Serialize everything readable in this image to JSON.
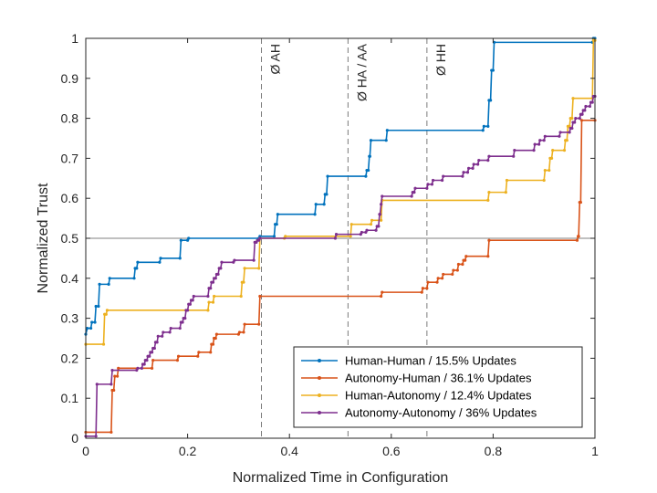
{
  "chart_data": {
    "type": "line",
    "title": "",
    "xlabel": "Normalized Time in Configuration",
    "ylabel": "Normalized Trust",
    "xlim": [
      0,
      1
    ],
    "ylim": [
      0,
      1
    ],
    "x_ticks": [
      "0",
      "0.2",
      "0.4",
      "0.6",
      "0.8",
      "1"
    ],
    "y_ticks": [
      "0",
      "0.1",
      "0.2",
      "0.3",
      "0.4",
      "0.5",
      "0.6",
      "0.7",
      "0.8",
      "0.9",
      "1"
    ],
    "x_tick_values": [
      0,
      0.2,
      0.4,
      0.6,
      0.8,
      1
    ],
    "y_tick_values": [
      0,
      0.1,
      0.2,
      0.3,
      0.4,
      0.5,
      0.6,
      0.7,
      0.8,
      0.9,
      1
    ],
    "grid": false,
    "legend_position": "bottom-right",
    "reference_line": {
      "y": 0.5,
      "color": "#808080"
    },
    "vlines": [
      {
        "x": 0.345,
        "label": "Ø AH"
      },
      {
        "x": 0.515,
        "label": "Ø HA / AA"
      },
      {
        "x": 0.67,
        "label": "Ø HH"
      }
    ],
    "series": [
      {
        "name": "Human-Human / 15.5% Updates",
        "color": "#0072BD",
        "points": [
          [
            0,
            0.26
          ],
          [
            0.003,
            0.275
          ],
          [
            0.01,
            0.275
          ],
          [
            0.012,
            0.29
          ],
          [
            0.018,
            0.29
          ],
          [
            0.02,
            0.33
          ],
          [
            0.025,
            0.33
          ],
          [
            0.027,
            0.385
          ],
          [
            0.045,
            0.385
          ],
          [
            0.047,
            0.4
          ],
          [
            0.095,
            0.4
          ],
          [
            0.097,
            0.425
          ],
          [
            0.1,
            0.425
          ],
          [
            0.102,
            0.44
          ],
          [
            0.145,
            0.44
          ],
          [
            0.147,
            0.45
          ],
          [
            0.185,
            0.45
          ],
          [
            0.187,
            0.495
          ],
          [
            0.2,
            0.495
          ],
          [
            0.202,
            0.5
          ],
          [
            0.34,
            0.5
          ],
          [
            0.342,
            0.505
          ],
          [
            0.37,
            0.505
          ],
          [
            0.372,
            0.535
          ],
          [
            0.375,
            0.535
          ],
          [
            0.377,
            0.56
          ],
          [
            0.45,
            0.56
          ],
          [
            0.452,
            0.585
          ],
          [
            0.468,
            0.585
          ],
          [
            0.47,
            0.61
          ],
          [
            0.473,
            0.61
          ],
          [
            0.475,
            0.655
          ],
          [
            0.55,
            0.655
          ],
          [
            0.552,
            0.67
          ],
          [
            0.555,
            0.67
          ],
          [
            0.557,
            0.705
          ],
          [
            0.558,
            0.705
          ],
          [
            0.56,
            0.745
          ],
          [
            0.59,
            0.745
          ],
          [
            0.592,
            0.77
          ],
          [
            0.78,
            0.77
          ],
          [
            0.782,
            0.78
          ],
          [
            0.79,
            0.78
          ],
          [
            0.792,
            0.845
          ],
          [
            0.795,
            0.845
          ],
          [
            0.797,
            0.92
          ],
          [
            0.8,
            0.92
          ],
          [
            0.802,
            0.99
          ],
          [
            0.995,
            0.99
          ],
          [
            0.997,
            1.0
          ],
          [
            1.0,
            1.0
          ]
        ]
      },
      {
        "name": "Autonomy-Human / 36.1% Updates",
        "color": "#D95319",
        "points": [
          [
            0,
            0.015
          ],
          [
            0.05,
            0.015
          ],
          [
            0.052,
            0.12
          ],
          [
            0.055,
            0.12
          ],
          [
            0.057,
            0.155
          ],
          [
            0.062,
            0.155
          ],
          [
            0.064,
            0.175
          ],
          [
            0.13,
            0.175
          ],
          [
            0.132,
            0.195
          ],
          [
            0.18,
            0.195
          ],
          [
            0.182,
            0.205
          ],
          [
            0.22,
            0.205
          ],
          [
            0.222,
            0.215
          ],
          [
            0.245,
            0.215
          ],
          [
            0.247,
            0.235
          ],
          [
            0.25,
            0.235
          ],
          [
            0.252,
            0.25
          ],
          [
            0.255,
            0.25
          ],
          [
            0.257,
            0.26
          ],
          [
            0.3,
            0.26
          ],
          [
            0.302,
            0.265
          ],
          [
            0.31,
            0.265
          ],
          [
            0.312,
            0.285
          ],
          [
            0.34,
            0.285
          ],
          [
            0.342,
            0.355
          ],
          [
            0.58,
            0.355
          ],
          [
            0.582,
            0.365
          ],
          [
            0.66,
            0.365
          ],
          [
            0.662,
            0.375
          ],
          [
            0.67,
            0.375
          ],
          [
            0.672,
            0.39
          ],
          [
            0.69,
            0.39
          ],
          [
            0.692,
            0.4
          ],
          [
            0.7,
            0.4
          ],
          [
            0.702,
            0.41
          ],
          [
            0.72,
            0.41
          ],
          [
            0.722,
            0.42
          ],
          [
            0.73,
            0.42
          ],
          [
            0.732,
            0.435
          ],
          [
            0.74,
            0.435
          ],
          [
            0.742,
            0.445
          ],
          [
            0.745,
            0.445
          ],
          [
            0.747,
            0.455
          ],
          [
            0.79,
            0.455
          ],
          [
            0.792,
            0.495
          ],
          [
            0.965,
            0.495
          ],
          [
            0.967,
            0.505
          ],
          [
            0.968,
            0.505
          ],
          [
            0.97,
            0.59
          ],
          [
            0.972,
            0.59
          ],
          [
            0.974,
            0.795
          ],
          [
            1.0,
            0.795
          ]
        ]
      },
      {
        "name": "Human-Autonomy / 12.4% Updates",
        "color": "#EDB120",
        "points": [
          [
            0,
            0.235
          ],
          [
            0.035,
            0.235
          ],
          [
            0.037,
            0.31
          ],
          [
            0.04,
            0.31
          ],
          [
            0.042,
            0.32
          ],
          [
            0.24,
            0.32
          ],
          [
            0.242,
            0.34
          ],
          [
            0.25,
            0.34
          ],
          [
            0.252,
            0.355
          ],
          [
            0.305,
            0.355
          ],
          [
            0.307,
            0.39
          ],
          [
            0.31,
            0.39
          ],
          [
            0.312,
            0.425
          ],
          [
            0.34,
            0.425
          ],
          [
            0.342,
            0.5
          ],
          [
            0.39,
            0.5
          ],
          [
            0.392,
            0.505
          ],
          [
            0.52,
            0.505
          ],
          [
            0.522,
            0.535
          ],
          [
            0.56,
            0.535
          ],
          [
            0.562,
            0.545
          ],
          [
            0.58,
            0.545
          ],
          [
            0.582,
            0.595
          ],
          [
            0.79,
            0.595
          ],
          [
            0.792,
            0.615
          ],
          [
            0.825,
            0.615
          ],
          [
            0.827,
            0.645
          ],
          [
            0.9,
            0.645
          ],
          [
            0.902,
            0.67
          ],
          [
            0.91,
            0.67
          ],
          [
            0.912,
            0.7
          ],
          [
            0.915,
            0.7
          ],
          [
            0.917,
            0.72
          ],
          [
            0.94,
            0.72
          ],
          [
            0.942,
            0.745
          ],
          [
            0.945,
            0.745
          ],
          [
            0.947,
            0.78
          ],
          [
            0.95,
            0.78
          ],
          [
            0.952,
            0.8
          ],
          [
            0.955,
            0.8
          ],
          [
            0.957,
            0.85
          ],
          [
            0.995,
            0.85
          ],
          [
            0.997,
            0.995
          ],
          [
            1.0,
            0.995
          ]
        ]
      },
      {
        "name": "Autonomy-Autonomy / 36% Updates",
        "color": "#7E2F8E",
        "points": [
          [
            0,
            0.005
          ],
          [
            0.02,
            0.005
          ],
          [
            0.022,
            0.135
          ],
          [
            0.05,
            0.135
          ],
          [
            0.052,
            0.17
          ],
          [
            0.1,
            0.17
          ],
          [
            0.102,
            0.175
          ],
          [
            0.11,
            0.175
          ],
          [
            0.112,
            0.185
          ],
          [
            0.115,
            0.185
          ],
          [
            0.117,
            0.195
          ],
          [
            0.12,
            0.195
          ],
          [
            0.122,
            0.205
          ],
          [
            0.125,
            0.205
          ],
          [
            0.127,
            0.215
          ],
          [
            0.13,
            0.215
          ],
          [
            0.132,
            0.225
          ],
          [
            0.135,
            0.225
          ],
          [
            0.137,
            0.24
          ],
          [
            0.14,
            0.24
          ],
          [
            0.142,
            0.255
          ],
          [
            0.15,
            0.255
          ],
          [
            0.152,
            0.265
          ],
          [
            0.165,
            0.265
          ],
          [
            0.167,
            0.275
          ],
          [
            0.185,
            0.275
          ],
          [
            0.187,
            0.29
          ],
          [
            0.19,
            0.29
          ],
          [
            0.192,
            0.3
          ],
          [
            0.195,
            0.3
          ],
          [
            0.197,
            0.32
          ],
          [
            0.2,
            0.32
          ],
          [
            0.202,
            0.335
          ],
          [
            0.205,
            0.335
          ],
          [
            0.207,
            0.345
          ],
          [
            0.21,
            0.345
          ],
          [
            0.212,
            0.355
          ],
          [
            0.24,
            0.355
          ],
          [
            0.242,
            0.375
          ],
          [
            0.245,
            0.375
          ],
          [
            0.247,
            0.39
          ],
          [
            0.25,
            0.39
          ],
          [
            0.252,
            0.4
          ],
          [
            0.255,
            0.4
          ],
          [
            0.257,
            0.41
          ],
          [
            0.26,
            0.41
          ],
          [
            0.262,
            0.425
          ],
          [
            0.265,
            0.425
          ],
          [
            0.267,
            0.44
          ],
          [
            0.29,
            0.44
          ],
          [
            0.292,
            0.445
          ],
          [
            0.33,
            0.445
          ],
          [
            0.332,
            0.49
          ],
          [
            0.335,
            0.49
          ],
          [
            0.337,
            0.495
          ],
          [
            0.34,
            0.495
          ],
          [
            0.342,
            0.5
          ],
          [
            0.49,
            0.5
          ],
          [
            0.492,
            0.51
          ],
          [
            0.54,
            0.51
          ],
          [
            0.542,
            0.515
          ],
          [
            0.55,
            0.515
          ],
          [
            0.552,
            0.52
          ],
          [
            0.57,
            0.52
          ],
          [
            0.572,
            0.53
          ],
          [
            0.575,
            0.53
          ],
          [
            0.577,
            0.56
          ],
          [
            0.578,
            0.56
          ],
          [
            0.58,
            0.585
          ],
          [
            0.582,
            0.605
          ],
          [
            0.64,
            0.605
          ],
          [
            0.642,
            0.615
          ],
          [
            0.645,
            0.615
          ],
          [
            0.647,
            0.625
          ],
          [
            0.67,
            0.625
          ],
          [
            0.672,
            0.635
          ],
          [
            0.68,
            0.635
          ],
          [
            0.682,
            0.645
          ],
          [
            0.7,
            0.645
          ],
          [
            0.702,
            0.655
          ],
          [
            0.74,
            0.655
          ],
          [
            0.742,
            0.665
          ],
          [
            0.75,
            0.665
          ],
          [
            0.752,
            0.675
          ],
          [
            0.76,
            0.675
          ],
          [
            0.762,
            0.685
          ],
          [
            0.77,
            0.685
          ],
          [
            0.772,
            0.695
          ],
          [
            0.79,
            0.695
          ],
          [
            0.792,
            0.705
          ],
          [
            0.84,
            0.705
          ],
          [
            0.842,
            0.72
          ],
          [
            0.88,
            0.72
          ],
          [
            0.882,
            0.735
          ],
          [
            0.89,
            0.735
          ],
          [
            0.892,
            0.745
          ],
          [
            0.9,
            0.745
          ],
          [
            0.902,
            0.755
          ],
          [
            0.93,
            0.755
          ],
          [
            0.932,
            0.765
          ],
          [
            0.95,
            0.765
          ],
          [
            0.952,
            0.775
          ],
          [
            0.955,
            0.775
          ],
          [
            0.957,
            0.79
          ],
          [
            0.96,
            0.79
          ],
          [
            0.962,
            0.8
          ],
          [
            0.97,
            0.8
          ],
          [
            0.972,
            0.81
          ],
          [
            0.975,
            0.81
          ],
          [
            0.977,
            0.82
          ],
          [
            0.98,
            0.82
          ],
          [
            0.982,
            0.83
          ],
          [
            0.99,
            0.83
          ],
          [
            0.992,
            0.84
          ],
          [
            0.995,
            0.84
          ],
          [
            0.997,
            0.855
          ],
          [
            1.0,
            0.855
          ]
        ]
      }
    ]
  }
}
